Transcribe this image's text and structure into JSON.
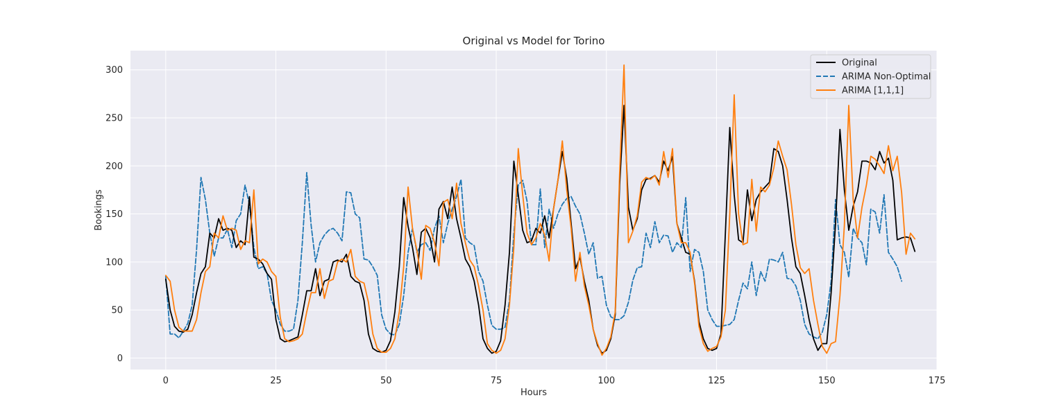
{
  "chart_data": {
    "type": "line",
    "title": "Original vs Model for Torino",
    "xlabel": "Hours",
    "ylabel": "Bookings",
    "xlim": [
      -8,
      175
    ],
    "ylim": [
      -12,
      320
    ],
    "xticks": [
      0,
      25,
      50,
      75,
      100,
      125,
      150,
      175
    ],
    "yticks": [
      0,
      50,
      100,
      150,
      200,
      250,
      300
    ],
    "grid": true,
    "legend_position": "top-right",
    "background_color": "#eaeaf2",
    "series": [
      {
        "name": "Original",
        "color": "#000000",
        "dash": "solid",
        "values": [
          82,
          50,
          33,
          28,
          27,
          30,
          45,
          68,
          88,
          95,
          130,
          125,
          145,
          133,
          135,
          133,
          115,
          122,
          118,
          168,
          105,
          103,
          98,
          88,
          82,
          40,
          20,
          17,
          18,
          20,
          22,
          45,
          70,
          70,
          93,
          65,
          80,
          82,
          100,
          102,
          100,
          108,
          85,
          80,
          78,
          60,
          25,
          10,
          7,
          6,
          8,
          18,
          48,
          95,
          167,
          137,
          115,
          87,
          131,
          135,
          125,
          100,
          155,
          163,
          145,
          178,
          145,
          125,
          103,
          95,
          80,
          55,
          20,
          10,
          5,
          7,
          18,
          55,
          110,
          205,
          170,
          133,
          120,
          122,
          135,
          130,
          148,
          125,
          155,
          185,
          215,
          187,
          140,
          93,
          105,
          80,
          60,
          30,
          13,
          5,
          8,
          20,
          45,
          180,
          263,
          157,
          133,
          145,
          175,
          186,
          187,
          190,
          183,
          205,
          195,
          210,
          140,
          125,
          110,
          108,
          80,
          38,
          20,
          10,
          8,
          10,
          25,
          130,
          240,
          170,
          123,
          120,
          175,
          143,
          165,
          173,
          178,
          183,
          218,
          215,
          200,
          165,
          125,
          95,
          88,
          65,
          40,
          20,
          8,
          15,
          15,
          68,
          140,
          238,
          175,
          133,
          158,
          173,
          205,
          205,
          203,
          196,
          215,
          203,
          208,
          185,
          123,
          125,
          126,
          125,
          111
        ]
      },
      {
        "name": "ARIMA Non-Optimal",
        "color": "#1f77b4",
        "dash": "dashed",
        "values": [
          85,
          25,
          25,
          21,
          28,
          36,
          55,
          113,
          188,
          165,
          130,
          106,
          125,
          125,
          134,
          115,
          143,
          150,
          180,
          160,
          115,
          93,
          95,
          88,
          60,
          50,
          35,
          28,
          28,
          30,
          60,
          120,
          193,
          138,
          100,
          120,
          128,
          133,
          135,
          130,
          122,
          173,
          172,
          150,
          146,
          103,
          102,
          95,
          86,
          45,
          30,
          25,
          24,
          35,
          65,
          110,
          135,
          110,
          118,
          120,
          112,
          135,
          148,
          120,
          140,
          155,
          168,
          186,
          125,
          120,
          117,
          90,
          80,
          55,
          34,
          30,
          30,
          32,
          60,
          130,
          180,
          185,
          163,
          118,
          118,
          176,
          115,
          155,
          135,
          150,
          160,
          166,
          168,
          158,
          150,
          130,
          108,
          120,
          83,
          85,
          55,
          43,
          40,
          40,
          44,
          58,
          81,
          94,
          95,
          130,
          115,
          142,
          120,
          128,
          127,
          110,
          120,
          115,
          167,
          90,
          113,
          110,
          90,
          50,
          40,
          33,
          33,
          34,
          35,
          40,
          60,
          78,
          72,
          100,
          65,
          90,
          80,
          103,
          102,
          100,
          110,
          83,
          82,
          75,
          60,
          35,
          25,
          22,
          20,
          27,
          45,
          80,
          165,
          118,
          110,
          84,
          135,
          125,
          120,
          97,
          155,
          152,
          130,
          170,
          110,
          103,
          95,
          80
        ]
      },
      {
        "name": "ARIMA [1,1,1]",
        "color": "#ff7f0e",
        "dash": "solid",
        "values": [
          86,
          80,
          50,
          32,
          28,
          28,
          28,
          40,
          68,
          90,
          95,
          130,
          125,
          148,
          133,
          135,
          133,
          113,
          122,
          120,
          175,
          98,
          103,
          100,
          90,
          85,
          42,
          20,
          17,
          18,
          20,
          25,
          48,
          68,
          68,
          93,
          62,
          80,
          82,
          100,
          103,
          100,
          113,
          85,
          80,
          78,
          58,
          25,
          10,
          6,
          6,
          10,
          20,
          48,
          95,
          178,
          135,
          112,
          82,
          138,
          135,
          120,
          96,
          162,
          165,
          145,
          182,
          140,
          120,
          102,
          95,
          75,
          50,
          15,
          8,
          5,
          8,
          20,
          55,
          115,
          218,
          170,
          130,
          118,
          125,
          140,
          128,
          101,
          155,
          185,
          226,
          175,
          135,
          80,
          110,
          75,
          55,
          30,
          15,
          3,
          10,
          22,
          48,
          192,
          305,
          120,
          132,
          148,
          183,
          188,
          186,
          190,
          180,
          215,
          188,
          218,
          140,
          120,
          120,
          110,
          78,
          33,
          15,
          7,
          10,
          12,
          22,
          50,
          150,
          274,
          150,
          118,
          120,
          186,
          132,
          178,
          173,
          180,
          198,
          226,
          210,
          196,
          160,
          118,
          94,
          88,
          93,
          60,
          35,
          12,
          5,
          15,
          17,
          65,
          138,
          263,
          165,
          125,
          157,
          180,
          210,
          207,
          200,
          192,
          221,
          195,
          210,
          172,
          108,
          130,
          124
        ]
      }
    ]
  }
}
